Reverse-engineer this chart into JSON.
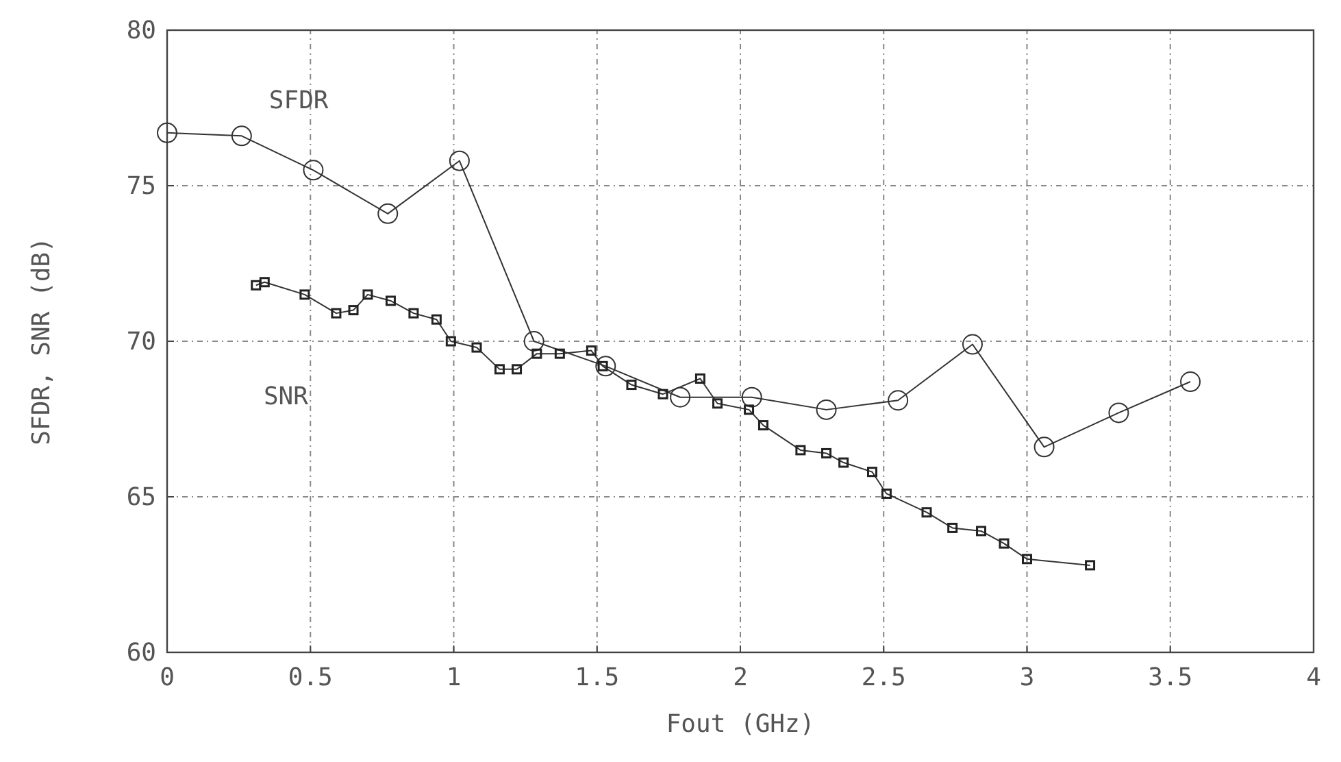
{
  "chart_data": {
    "type": "line",
    "xlabel": "Fout (GHz)",
    "ylabel": "SFDR, SNR (dB)",
    "xlim": [
      0,
      4
    ],
    "ylim": [
      60,
      80
    ],
    "xticks": [
      0,
      0.5,
      1,
      1.5,
      2,
      2.5,
      3,
      3.5,
      4
    ],
    "yticks": [
      60,
      65,
      70,
      75,
      80
    ],
    "grid": true,
    "series": [
      {
        "name": "SFDR",
        "color": "#333333",
        "marker": "circle",
        "x": [
          0.0,
          0.26,
          0.51,
          0.77,
          1.02,
          1.28,
          1.53,
          1.79,
          2.04,
          2.3,
          2.55,
          2.81,
          3.06,
          3.32,
          3.57
        ],
        "values": [
          76.7,
          76.6,
          75.5,
          74.1,
          75.8,
          70.0,
          69.2,
          68.2,
          68.2,
          67.8,
          68.1,
          69.9,
          66.6,
          67.7,
          68.7
        ]
      },
      {
        "name": "SNR",
        "color": "#333333",
        "marker": "square",
        "x": [
          0.31,
          0.34,
          0.48,
          0.59,
          0.65,
          0.7,
          0.78,
          0.86,
          0.94,
          0.99,
          1.08,
          1.16,
          1.22,
          1.29,
          1.37,
          1.48,
          1.52,
          1.62,
          1.73,
          1.86,
          1.92,
          2.03,
          2.08,
          2.21,
          2.3,
          2.36,
          2.46,
          2.51,
          2.65,
          2.74,
          2.84,
          2.92,
          3.0,
          3.22
        ],
        "values": [
          71.8,
          71.9,
          71.5,
          70.9,
          71.0,
          71.5,
          71.3,
          70.9,
          70.7,
          70.0,
          69.8,
          69.1,
          69.1,
          69.6,
          69.6,
          69.7,
          69.2,
          68.6,
          68.3,
          68.8,
          68.0,
          67.8,
          67.3,
          66.5,
          66.4,
          66.1,
          65.8,
          65.1,
          64.5,
          64.0,
          63.9,
          63.5,
          63.0,
          62.8
        ]
      }
    ]
  }
}
